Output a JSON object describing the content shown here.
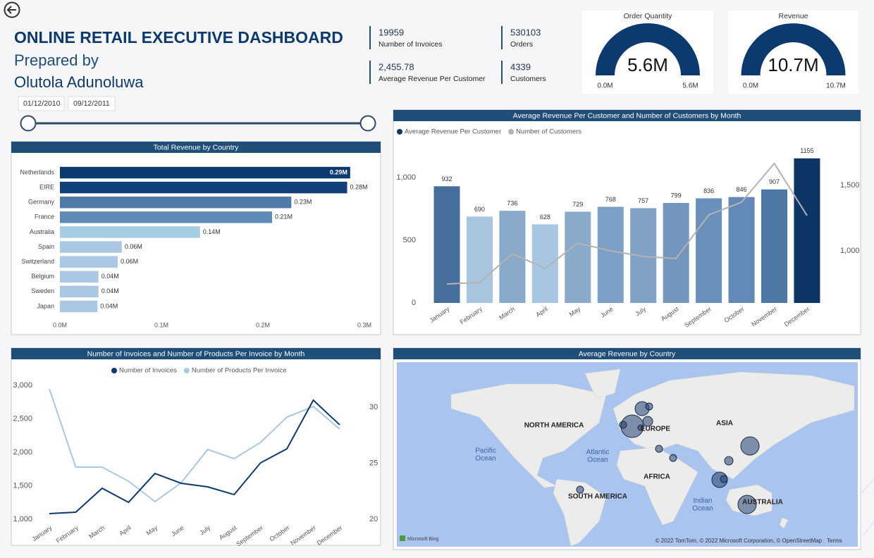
{
  "header": {
    "title": "ONLINE RETAIL EXECUTIVE DASHBOARD",
    "subtitle": "Prepared by",
    "author": "Olutola Adunoluwa"
  },
  "date_range": {
    "start": "01/12/2010",
    "end": "09/12/2011"
  },
  "kpis": [
    {
      "value": "19959",
      "label": "Number of Invoices"
    },
    {
      "value": "530103",
      "label": "Orders"
    },
    {
      "value": "2,455.78",
      "label": "Average Revenue Per Customer"
    },
    {
      "value": "4339",
      "label": "Customers"
    }
  ],
  "chart_data": [
    {
      "type": "gauge",
      "title": "Order Quantity",
      "values": [
        5.6
      ],
      "value_labels": [
        "5.6M"
      ],
      "color": "#0d3a6e",
      "ylim": [
        0,
        5.6
      ],
      "yticks": [
        {
          "value": 0,
          "label": "0.0M"
        },
        {
          "value": 5.6,
          "label": "5.6M"
        }
      ]
    },
    {
      "type": "gauge",
      "title": "Revenue",
      "values": [
        10.7
      ],
      "value_labels": [
        "10.7M"
      ],
      "color": "#0d3a6e",
      "ylim": [
        0,
        10.7
      ],
      "yticks": [
        {
          "value": 0,
          "label": "0.0M"
        },
        {
          "value": 10.7,
          "label": "10.7M"
        }
      ]
    },
    {
      "type": "hbar",
      "title": "Total Revenue by Country",
      "categories": [
        "Netherlands",
        "EIRE",
        "Germany",
        "France",
        "Australia",
        "Spain",
        "Switzerland",
        "Belgium",
        "Sweden",
        "Japan"
      ],
      "values": [
        0.286,
        0.283,
        0.228,
        0.209,
        0.138,
        0.061,
        0.057,
        0.038,
        0.038,
        0.037
      ],
      "value_labels": [
        "0.29M",
        "0.28M",
        "0.23M",
        "0.21M",
        "0.14M",
        "0.06M",
        "0.06M",
        "0.04M",
        "0.04M",
        "0.04M"
      ],
      "colors": [
        "#0d3a6e",
        "#11407a",
        "#4e7aa6",
        "#5e8bb5",
        "#a4cde3",
        "#aac8e3",
        "#aac8e3",
        "#aac8e3",
        "#aac8e3",
        "#aac8e3"
      ],
      "xlim": [
        0,
        0.3
      ],
      "xticks": [
        {
          "value": 0,
          "label": "0.0M"
        },
        {
          "value": 0.1,
          "label": "0.1M"
        },
        {
          "value": 0.2,
          "label": "0.2M"
        },
        {
          "value": 0.3,
          "label": "0.3M"
        }
      ]
    },
    {
      "type": "combo",
      "title": "Average Revenue Per Customer and Number of Customers by Month",
      "categories": [
        "January",
        "February",
        "March",
        "April",
        "May",
        "June",
        "July",
        "August",
        "September",
        "October",
        "November",
        "December"
      ],
      "series": [
        {
          "name": "Average Revenue Per Customer",
          "type": "bar",
          "color": "#0d3a6e",
          "values": [
            932,
            690,
            736,
            628,
            729,
            768,
            757,
            799,
            836,
            846,
            907,
            1155
          ],
          "colors": [
            "#476f9c",
            "#a8c4de",
            "#89a9cb",
            "#a7c6e2",
            "#8aaacc",
            "#7c9fc5",
            "#80a2c7",
            "#7396bf",
            "#6890bb",
            "#6289b7",
            "#4e78a6",
            "#0c3464"
          ]
        },
        {
          "name": "Number of Customers",
          "type": "line",
          "color": "#b3b3b3",
          "axis": "y2",
          "values": [
            747,
            758,
            978,
            866,
            1059,
            1000,
            957,
            941,
            1274,
            1371,
            1667,
            1269
          ]
        }
      ],
      "ylim": [
        0,
        1300
      ],
      "yticks": [
        0,
        500,
        {
          "value": 1000,
          "label": "1,000"
        }
      ],
      "y2lim": [
        602,
        1844
      ],
      "y2ticks": [
        {
          "value": 1000,
          "label": "1,000"
        },
        {
          "value": 1500,
          "label": "1,500"
        }
      ]
    },
    {
      "type": "line",
      "title": "Number of Invoices and Number of Products Per Invoice by Month",
      "categories": [
        "January",
        "February",
        "March",
        "April",
        "May",
        "June",
        "July",
        "August",
        "September",
        "October",
        "November",
        "December"
      ],
      "series": [
        {
          "name": "Number of Invoices",
          "color": "#0d3a6e",
          "values": [
            1084,
            1105,
            1463,
            1253,
            1684,
            1537,
            1484,
            1368,
            1842,
            2053,
            2779,
            2411
          ]
        },
        {
          "name": "Number of Products Per Invoice",
          "color": "#a9c9e3",
          "axis": "y2",
          "values": [
            31.64,
            24.65,
            24.65,
            23.4,
            21.57,
            23.27,
            26.23,
            25.41,
            26.86,
            29.12,
            30.06,
            28.05
          ]
        }
      ],
      "ylim": [
        900,
        3100
      ],
      "yticks": [
        {
          "value": 1000,
          "label": "1,000"
        },
        {
          "value": 1500,
          "label": "1,500"
        },
        {
          "value": 2000,
          "label": "2,000"
        },
        {
          "value": 2500,
          "label": "2,500"
        },
        {
          "value": 3000,
          "label": "3,000"
        }
      ],
      "y2lim": [
        19.4,
        32.55
      ],
      "y2ticks": [
        20,
        25,
        30
      ]
    }
  ],
  "map": {
    "title": "Average Revenue by Country",
    "region_labels": [
      "NORTH AMERICA",
      "EUROPE",
      "ASIA",
      "AFRICA",
      "SOUTH AMERICA",
      "AUSTRALIA"
    ],
    "ocean_labels": [
      [
        "Pacific",
        "Ocean"
      ],
      [
        "Atlantic",
        "Ocean"
      ],
      [
        "Indian",
        "Ocean"
      ]
    ],
    "provider": "Microsoft Bing",
    "attribution": "© 2022 TomTom, © 2022 Microsoft Corporation, © OpenStreetMap",
    "terms": "Terms"
  }
}
